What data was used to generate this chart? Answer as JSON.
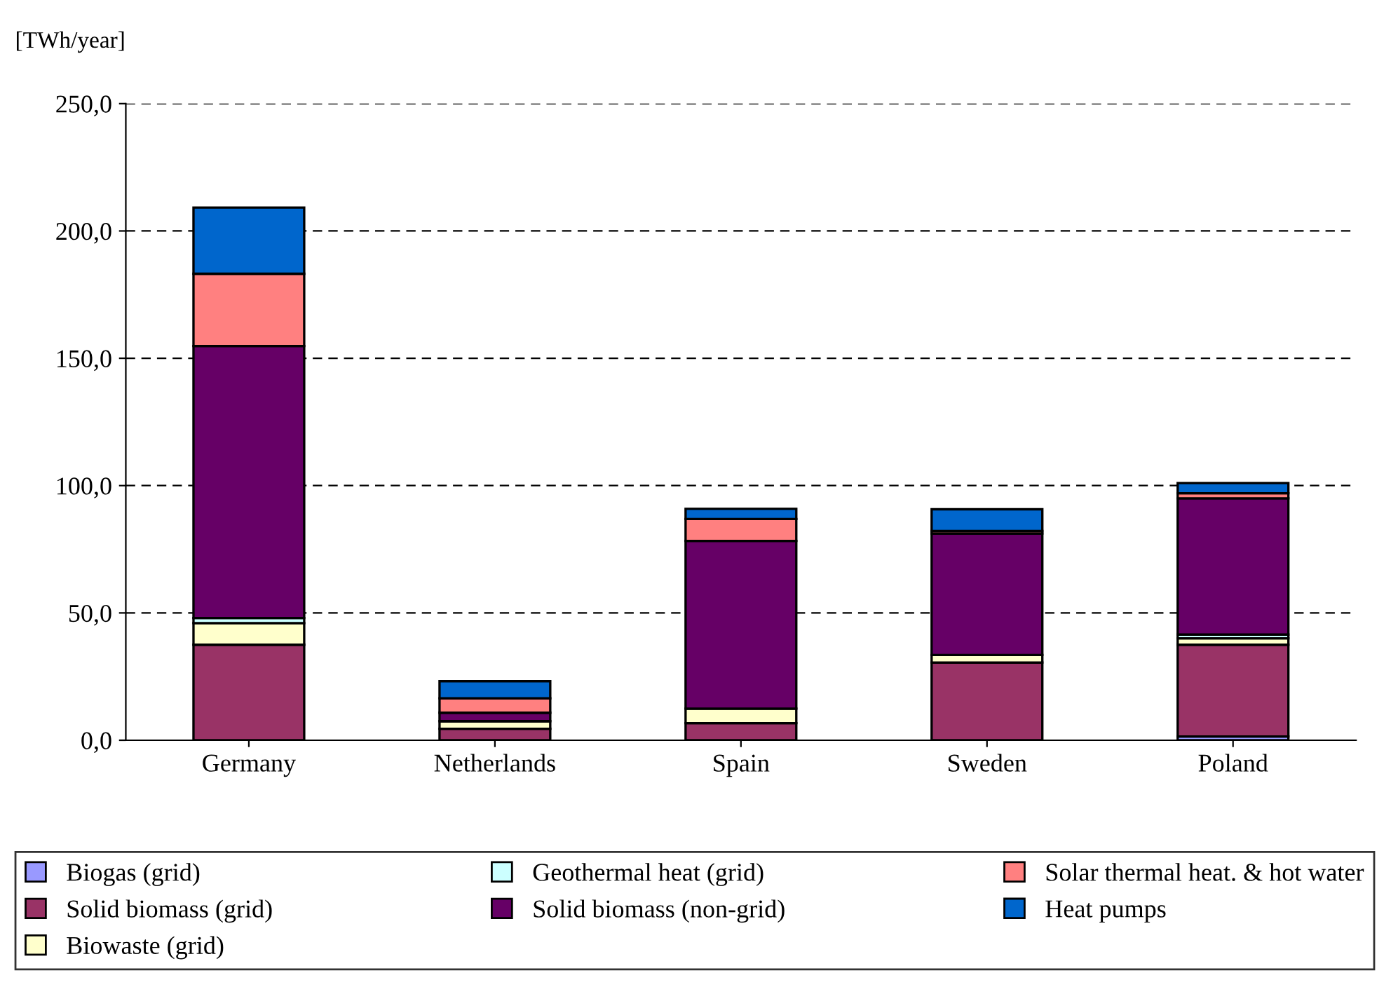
{
  "chart_data": {
    "type": "bar",
    "stacked": true,
    "ylabel": "[TWh/year]",
    "categories": [
      "Germany",
      "Netherlands",
      "Spain",
      "Sweden",
      "Poland"
    ],
    "series": [
      {
        "name": "Biogas (grid)",
        "color": "#9999ff",
        "values": [
          null,
          null,
          null,
          null,
          1.5
        ]
      },
      {
        "name": "Solid biomass (grid)",
        "color": "#993366",
        "values": [
          37.5,
          4.5,
          6.7,
          30.5,
          36
        ]
      },
      {
        "name": "Biowaste (grid)",
        "color": "#ffffcc",
        "values": [
          8.5,
          3,
          5.7,
          3,
          2.5
        ]
      },
      {
        "name": "Geothermal heat (grid)",
        "color": "#ccffff",
        "values": [
          2,
          null,
          0,
          0,
          1.5
        ]
      },
      {
        "name": "Solid biomass (non-grid)",
        "color": "#660066",
        "values": [
          106.8,
          3.3,
          65.9,
          47.7,
          53.5
        ]
      },
      {
        "name": "Solar thermal heat. & hot water",
        "color": "#ff8080",
        "values": [
          28.4,
          5.7,
          8.6,
          1,
          2
        ]
      },
      {
        "name": "Heat pumps",
        "color": "#0066cc",
        "values": [
          26,
          6.7,
          4,
          8.5,
          4
        ]
      }
    ],
    "ylim": [
      0,
      250
    ],
    "yticks": [
      {
        "value": 0,
        "label": "0,0"
      },
      {
        "value": 50,
        "label": "50,0"
      },
      {
        "value": 100,
        "label": "100,0"
      },
      {
        "value": 150,
        "label": "150,0"
      },
      {
        "value": 200,
        "label": "200,0"
      },
      {
        "value": 250,
        "label": "250,0"
      }
    ],
    "grid": "y",
    "legend": "bottom"
  }
}
